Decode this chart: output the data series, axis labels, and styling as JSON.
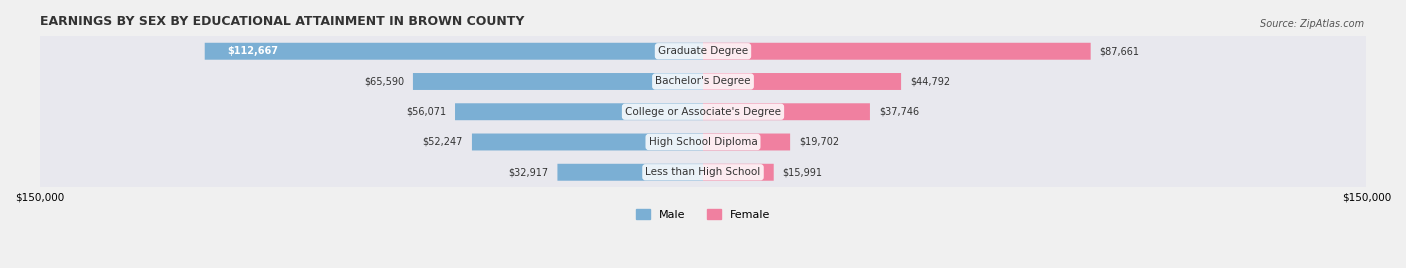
{
  "title": "EARNINGS BY SEX BY EDUCATIONAL ATTAINMENT IN BROWN COUNTY",
  "source": "Source: ZipAtlas.com",
  "categories": [
    "Less than High School",
    "High School Diploma",
    "College or Associate's Degree",
    "Bachelor's Degree",
    "Graduate Degree"
  ],
  "male_values": [
    32917,
    52247,
    56071,
    65590,
    112667
  ],
  "female_values": [
    15991,
    19702,
    37746,
    44792,
    87661
  ],
  "male_color": "#7bafd4",
  "female_color": "#f080a0",
  "max_value": 150000,
  "xlabel_left": "$150,000",
  "xlabel_right": "$150,000",
  "background_color": "#f0f0f0",
  "bar_bg_color": "#e0e0e8",
  "row_bg_color": "#e8e8ee",
  "label_color": "#333333",
  "title_fontsize": 9,
  "source_fontsize": 7,
  "bar_height": 0.55,
  "legend_male": "Male",
  "legend_female": "Female"
}
